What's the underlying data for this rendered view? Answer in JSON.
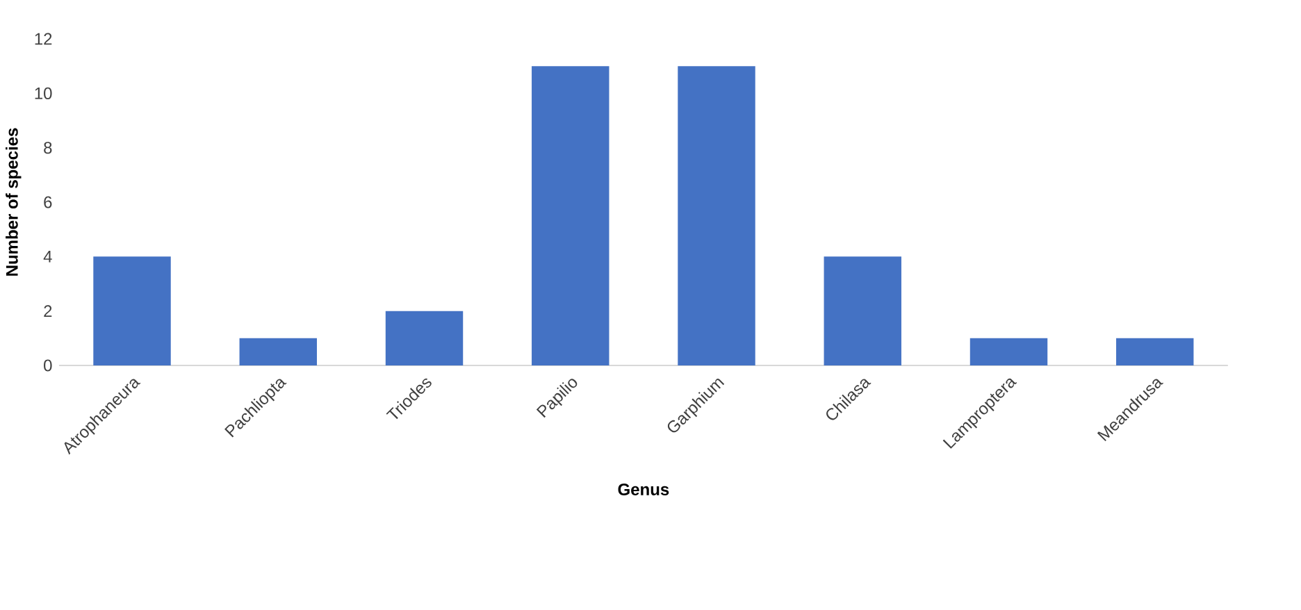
{
  "chart_data": {
    "type": "bar",
    "xlabel": "Genus",
    "ylabel": "Number of species",
    "categories": [
      "Atrophaneura",
      "Pachliopta",
      "Triodes",
      "Papilio",
      "Garphium",
      "Chilasa",
      "Lamproptera",
      "Meandrusa"
    ],
    "values": [
      4,
      1,
      2,
      11,
      11,
      4,
      1,
      1
    ],
    "color": "#4472c4",
    "ylim": [
      0,
      12
    ],
    "yticks": [
      0,
      2,
      4,
      6,
      8,
      10,
      12
    ]
  }
}
